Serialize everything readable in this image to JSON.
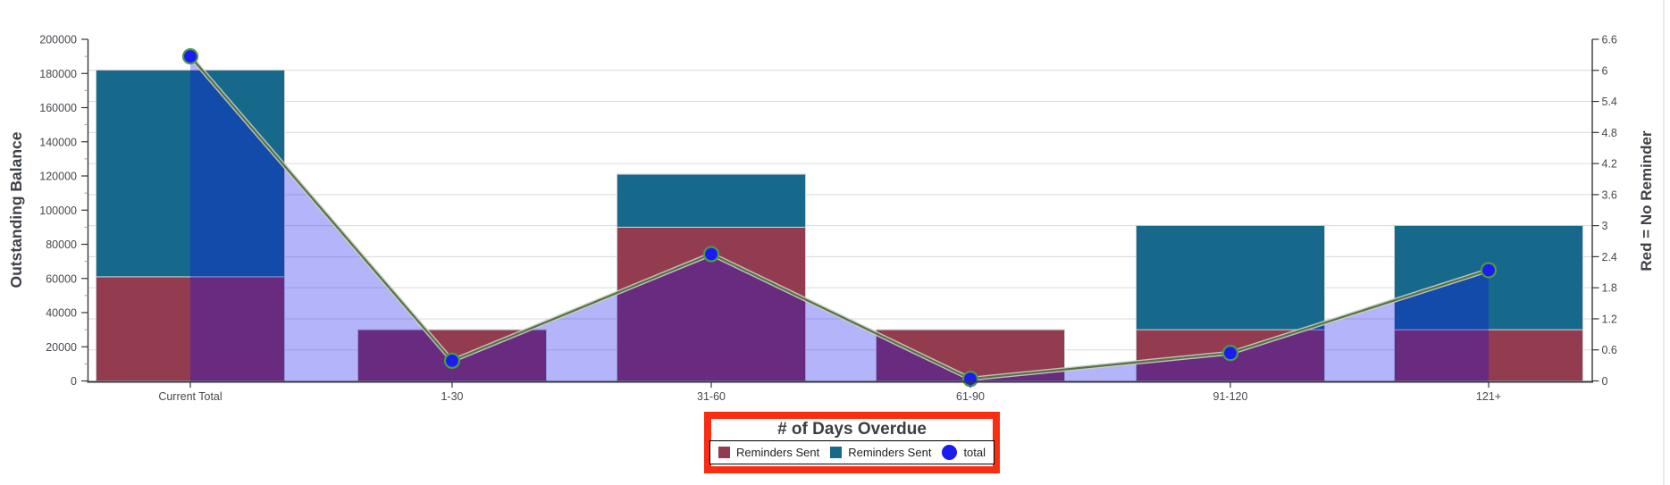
{
  "chart_data": {
    "type": "combo",
    "title": "",
    "xlabel": "# of Days Overdue",
    "categories": [
      "Current Total",
      "1-30",
      "31-60",
      "61-90",
      "91-120",
      "121+"
    ],
    "left_axis": {
      "label": "Outstanding Balance",
      "min": 0,
      "max": 200000,
      "tick_labels": [
        "0",
        "20000",
        "40000",
        "60000",
        "80000",
        "100000",
        "120000",
        "140000",
        "160000",
        "180000",
        "200000"
      ],
      "minor_tick_step": 10000
    },
    "right_axis": {
      "label": "Red = No Reminder",
      "min": 0,
      "max": 6.6,
      "tick_labels": [
        "0",
        "0.6",
        "1.2",
        "1.8",
        "2.4",
        "3",
        "3.6",
        "4.2",
        "4.8",
        "5.4",
        "6",
        "6.6"
      ]
    },
    "gridlines": {
      "follow": "right_axis",
      "step": 0.6,
      "color": "#DADADA"
    },
    "axis_color": "#33373B",
    "tick_text_color": "#45494E",
    "title_color": "#3E4247",
    "series": [
      {
        "name": "Reminders Sent",
        "type": "bar",
        "stack": "overdue",
        "axis": "left",
        "color": "#943C4F",
        "border_color": "#C9CED2",
        "values": [
          61000,
          30000,
          90000,
          30000,
          30000,
          30000
        ]
      },
      {
        "name": "Reminders Sent",
        "type": "bar",
        "stack": "overdue",
        "axis": "left",
        "color": "#17698C",
        "border_color": "#C9CED2",
        "values": [
          121000,
          0,
          31000,
          0,
          61000,
          61000
        ]
      },
      {
        "name": "total",
        "type": "area-line-marker",
        "axis": "right",
        "area_color": "rgba(5,5,238,0.30)",
        "line_color": "#587247",
        "line_halo_color": "rgba(201,207,194,0.9)",
        "marker_fill": "#1A1CF0",
        "marker_stroke": "#4C9A44",
        "values": [
          6.27,
          0.39,
          2.45,
          0.04,
          0.54,
          2.14
        ]
      }
    ]
  },
  "legend": {
    "items": [
      {
        "label": "Reminders Sent",
        "color": "#943C4F",
        "marker": "square"
      },
      {
        "label": "Reminders Sent",
        "color": "#17698C",
        "marker": "square"
      },
      {
        "label": "total",
        "color": "#1A1CF0",
        "marker": "circle"
      }
    ]
  },
  "annotation": {
    "highlight_color": "#FA2D12"
  },
  "frame": {
    "divider_color": "#E2E2E2"
  }
}
